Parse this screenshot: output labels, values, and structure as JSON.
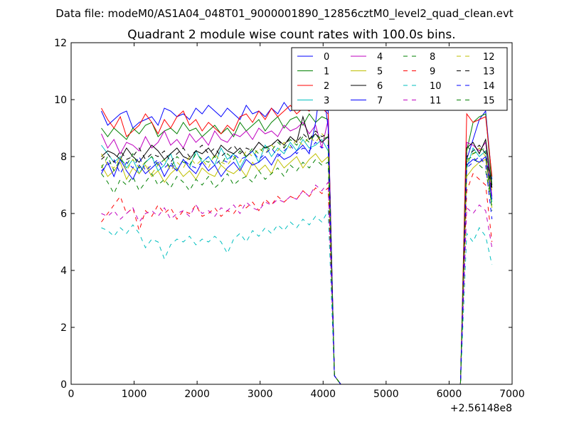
{
  "figure": {
    "suptitle": "Data file: modeM0/AS1A04_048T01_9000001890_12856cztM0_level2_quad_clean.evt"
  },
  "chart_data": {
    "type": "line",
    "title": "Quadrant 2 module wise count rates with 100.0s bins.",
    "xlabel": "",
    "ylabel": "",
    "xlim": [
      0,
      7000
    ],
    "ylim": [
      0,
      12
    ],
    "x_ticks": [
      0,
      1000,
      2000,
      3000,
      4000,
      5000,
      6000,
      7000
    ],
    "y_ticks": [
      0,
      2,
      4,
      6,
      8,
      10,
      12
    ],
    "x_offset_text": "+2.56148e8",
    "grid": false,
    "legend_position": "top-right",
    "legend_columns": 4,
    "x_segments": {
      "segment1": [
        480,
        580,
        680,
        780,
        880,
        980,
        1080,
        1180,
        1280,
        1380,
        1480,
        1580,
        1680,
        1780,
        1880,
        1980,
        2080,
        2180,
        2280,
        2380,
        2480,
        2580,
        2680,
        2780,
        2880,
        2980,
        3080,
        3180,
        3280,
        3380,
        3480,
        3580,
        3680,
        3780,
        3880,
        3980,
        4080,
        4180,
        4280
      ],
      "gap_end": 6180,
      "segment2": [
        6180,
        6280,
        6380,
        6480,
        6580,
        6680
      ]
    },
    "series": [
      {
        "name": "0",
        "color": "#0000ff",
        "dash": "solid",
        "values1": [
          9.6,
          9.1,
          9.3,
          9.5,
          9.6,
          9.0,
          9.2,
          9.3,
          9.4,
          9.1,
          9.7,
          9.6,
          9.4,
          9.5,
          9.3,
          9.7,
          9.5,
          9.8,
          9.6,
          9.4,
          9.7,
          9.5,
          9.3,
          9.8,
          9.5,
          9.6,
          9.4,
          9.7,
          9.5,
          9.9,
          9.6,
          9.7,
          9.8,
          9.6,
          9.9,
          9.7,
          9.6,
          0.3,
          0
        ],
        "values2": [
          0,
          7.9,
          8.6,
          9.3,
          9.6,
          7.2
        ]
      },
      {
        "name": "1",
        "color": "#008000",
        "dash": "solid",
        "values1": [
          9.0,
          8.7,
          9.0,
          8.8,
          8.6,
          9.0,
          8.8,
          9.1,
          9.2,
          8.7,
          8.9,
          9.0,
          8.8,
          9.2,
          8.9,
          9.0,
          8.7,
          8.9,
          9.1,
          8.8,
          9.0,
          8.7,
          9.2,
          8.9,
          9.1,
          9.3,
          8.9,
          9.2,
          9.4,
          9.0,
          9.3,
          9.4,
          9.1,
          9.5,
          9.2,
          9.4,
          9.3,
          0.3,
          0
        ],
        "values2": [
          0,
          8.2,
          9.2,
          9.4,
          9.5,
          7.0
        ]
      },
      {
        "name": "2",
        "color": "#ff0000",
        "dash": "solid",
        "values1": [
          9.7,
          9.3,
          9.0,
          9.4,
          8.7,
          8.9,
          9.1,
          9.5,
          9.2,
          8.8,
          9.3,
          9.0,
          9.4,
          9.6,
          9.1,
          9.3,
          8.9,
          9.2,
          9.0,
          8.8,
          9.1,
          8.9,
          9.4,
          9.5,
          9.2,
          9.6,
          9.3,
          9.7,
          9.4,
          9.6,
          9.8,
          9.5,
          9.7,
          9.6,
          9.8,
          9.7,
          9.5,
          0.3,
          0
        ],
        "values2": [
          0,
          9.5,
          9.2,
          9.3,
          9.4,
          7.3
        ]
      },
      {
        "name": "3",
        "color": "#00bfbf",
        "dash": "solid",
        "values1": [
          8.4,
          8.1,
          7.8,
          8.0,
          7.6,
          7.9,
          7.4,
          7.8,
          8.0,
          7.5,
          7.7,
          8.1,
          7.5,
          7.9,
          7.6,
          8.2,
          7.8,
          8.0,
          7.7,
          8.3,
          7.9,
          8.1,
          7.6,
          8.0,
          8.2,
          7.8,
          8.4,
          8.0,
          8.3,
          8.1,
          8.5,
          8.2,
          8.6,
          8.3,
          8.4,
          8.6,
          8.2,
          0.3,
          0
        ],
        "values2": [
          0,
          7.6,
          8.3,
          8.0,
          8.2,
          6.4
        ]
      },
      {
        "name": "4",
        "color": "#bf00bf",
        "dash": "solid",
        "values1": [
          8.8,
          8.3,
          8.6,
          8.1,
          8.5,
          8.4,
          8.2,
          8.7,
          8.3,
          8.5,
          8.9,
          8.4,
          8.6,
          8.3,
          8.8,
          8.5,
          8.7,
          8.4,
          8.9,
          8.6,
          8.5,
          8.8,
          8.7,
          8.9,
          8.6,
          9.0,
          8.8,
          8.9,
          8.7,
          9.1,
          8.9,
          9.0,
          9.2,
          8.8,
          9.1,
          8.3,
          9.3,
          0.3,
          0
        ],
        "values2": [
          0,
          8.5,
          8.4,
          8.2,
          8.5,
          6.6
        ]
      },
      {
        "name": "5",
        "color": "#bfbf00",
        "dash": "solid",
        "values1": [
          7.7,
          7.3,
          7.5,
          7.8,
          7.2,
          7.6,
          7.4,
          7.7,
          7.3,
          7.5,
          7.1,
          7.4,
          7.6,
          7.3,
          7.5,
          7.2,
          7.6,
          7.4,
          7.3,
          7.7,
          7.5,
          7.4,
          7.6,
          7.3,
          7.8,
          7.5,
          7.7,
          7.4,
          7.9,
          7.6,
          7.8,
          8.0,
          7.6,
          7.9,
          8.1,
          7.8,
          8.0,
          0.3,
          0
        ],
        "values2": [
          0,
          7.3,
          7.6,
          7.8,
          7.9,
          6.2
        ]
      },
      {
        "name": "6",
        "color": "#000000",
        "dash": "solid",
        "values1": [
          8.0,
          8.2,
          8.1,
          7.9,
          8.3,
          8.0,
          7.8,
          8.1,
          8.4,
          8.2,
          7.9,
          8.1,
          8.3,
          8.0,
          7.9,
          8.2,
          8.1,
          8.3,
          8.0,
          8.4,
          8.2,
          8.1,
          8.3,
          8.0,
          8.2,
          8.5,
          8.3,
          8.4,
          8.6,
          8.4,
          8.7,
          8.5,
          9.4,
          8.6,
          8.8,
          8.5,
          8.7,
          0.3,
          0
        ],
        "values2": [
          0,
          8.3,
          8.5,
          8.1,
          8.6,
          6.9
        ]
      },
      {
        "name": "7",
        "color": "#0000ff",
        "dash": "solid",
        "values1": [
          7.4,
          7.8,
          7.3,
          7.9,
          7.5,
          7.2,
          7.7,
          7.4,
          7.6,
          7.8,
          7.3,
          7.7,
          7.5,
          7.9,
          7.6,
          7.4,
          7.8,
          7.5,
          7.7,
          7.3,
          7.6,
          7.8,
          7.5,
          7.9,
          7.7,
          7.8,
          8.0,
          7.7,
          8.1,
          7.9,
          8.0,
          8.2,
          8.4,
          8.1,
          9.2,
          10.8,
          9.0,
          0.3,
          0
        ],
        "values2": [
          0,
          7.7,
          7.9,
          7.8,
          8.0,
          6.5
        ]
      },
      {
        "name": "8",
        "color": "#008000",
        "dash": "dashed",
        "values1": [
          7.4,
          7.1,
          6.7,
          7.2,
          7.0,
          7.3,
          6.8,
          7.1,
          7.4,
          7.0,
          7.2,
          6.9,
          7.3,
          7.1,
          6.8,
          7.2,
          7.0,
          7.3,
          6.9,
          7.1,
          7.4,
          7.0,
          7.2,
          7.3,
          7.1,
          7.5,
          7.2,
          7.4,
          7.6,
          7.3,
          7.7,
          7.5,
          7.8,
          7.6,
          7.9,
          7.7,
          7.8,
          0.3,
          0
        ],
        "values2": [
          0,
          7.9,
          8.0,
          7.7,
          7.5,
          6.3
        ]
      },
      {
        "name": "9",
        "color": "#ff0000",
        "dash": "dashed",
        "values1": [
          5.7,
          6.0,
          6.3,
          6.6,
          6.0,
          6.2,
          5.4,
          6.1,
          5.9,
          6.3,
          6.0,
          6.2,
          5.8,
          6.1,
          6.0,
          6.3,
          5.9,
          6.0,
          6.2,
          5.9,
          6.1,
          6.0,
          6.3,
          6.2,
          6.4,
          6.1,
          6.5,
          6.3,
          6.6,
          6.4,
          6.6,
          6.5,
          6.8,
          6.6,
          6.9,
          6.7,
          6.9,
          0.3,
          0
        ],
        "values2": [
          0,
          6.8,
          7.4,
          7.2,
          7.0,
          5.0
        ]
      },
      {
        "name": "10",
        "color": "#00bfbf",
        "dash": "dashed",
        "values1": [
          5.5,
          5.4,
          5.2,
          5.5,
          5.3,
          5.6,
          5.3,
          4.8,
          5.1,
          5.0,
          4.4,
          4.9,
          5.1,
          5.0,
          5.2,
          4.9,
          5.1,
          5.0,
          5.2,
          5.0,
          4.6,
          5.1,
          5.3,
          5.0,
          5.4,
          5.2,
          5.5,
          5.3,
          5.6,
          5.4,
          5.7,
          5.5,
          5.8,
          5.6,
          5.9,
          5.7,
          6.1,
          0.3,
          0
        ],
        "values2": [
          0,
          5.3,
          5.0,
          5.5,
          5.2,
          4.2
        ]
      },
      {
        "name": "11",
        "color": "#bf00bf",
        "dash": "dashed",
        "values1": [
          6.0,
          5.9,
          6.1,
          5.8,
          6.0,
          6.2,
          5.7,
          6.0,
          6.1,
          5.9,
          6.2,
          5.8,
          6.0,
          6.1,
          5.9,
          6.3,
          6.0,
          6.1,
          5.9,
          6.2,
          6.1,
          6.3,
          6.0,
          6.4,
          6.2,
          6.1,
          6.4,
          6.3,
          6.5,
          6.4,
          6.6,
          6.5,
          6.8,
          6.6,
          7.0,
          6.8,
          7.1,
          0.3,
          0
        ],
        "values2": [
          0,
          6.2,
          6.0,
          6.3,
          6.1,
          4.8
        ]
      },
      {
        "name": "12",
        "color": "#bfbf00",
        "dash": "dashed",
        "values1": [
          8.1,
          7.7,
          7.6,
          8.0,
          7.5,
          7.9,
          7.6,
          7.8,
          7.4,
          7.7,
          7.9,
          7.5,
          7.8,
          7.6,
          8.0,
          7.7,
          7.9,
          7.6,
          8.1,
          7.8,
          7.7,
          8.0,
          7.8,
          8.2,
          8.0,
          8.3,
          8.1,
          8.4,
          8.2,
          8.5,
          8.3,
          8.6,
          8.4,
          8.7,
          8.5,
          8.8,
          8.6,
          0.3,
          0
        ],
        "values2": [
          0,
          7.8,
          8.1,
          8.3,
          8.0,
          6.8
        ]
      },
      {
        "name": "13",
        "color": "#000000",
        "dash": "dashed",
        "values1": [
          7.9,
          8.1,
          7.8,
          8.2,
          7.9,
          8.0,
          8.3,
          7.9,
          8.1,
          8.0,
          8.2,
          7.8,
          8.1,
          8.3,
          8.0,
          8.2,
          8.4,
          8.1,
          8.3,
          8.0,
          8.2,
          8.4,
          8.1,
          8.3,
          8.2,
          8.5,
          8.3,
          8.4,
          8.6,
          8.3,
          8.7,
          8.5,
          8.8,
          8.6,
          8.9,
          8.7,
          8.8,
          0.3,
          0
        ],
        "values2": [
          0,
          8.0,
          8.2,
          8.4,
          8.1,
          6.8
        ]
      },
      {
        "name": "14",
        "color": "#0000ff",
        "dash": "dashed",
        "values1": [
          7.5,
          7.7,
          7.9,
          7.4,
          7.8,
          7.6,
          8.0,
          7.5,
          7.7,
          7.9,
          7.6,
          7.8,
          7.5,
          7.9,
          7.7,
          7.6,
          7.8,
          8.0,
          7.7,
          7.9,
          7.8,
          8.1,
          7.9,
          8.0,
          8.2,
          7.9,
          8.1,
          8.3,
          8.0,
          8.2,
          8.4,
          8.1,
          8.3,
          8.2,
          8.5,
          8.3,
          8.4,
          0.3,
          0
        ],
        "values2": [
          0,
          7.6,
          7.8,
          8.0,
          7.7,
          5.8
        ]
      },
      {
        "name": "15",
        "color": "#008000",
        "dash": "dashed",
        "values1": [
          7.6,
          8.0,
          7.5,
          7.9,
          7.7,
          8.1,
          7.6,
          7.8,
          8.0,
          7.7,
          7.9,
          7.6,
          8.0,
          7.8,
          7.7,
          8.1,
          7.9,
          7.8,
          8.0,
          7.7,
          8.1,
          7.9,
          8.2,
          8.0,
          8.3,
          8.1,
          8.4,
          8.2,
          8.5,
          8.3,
          8.6,
          8.4,
          8.7,
          8.5,
          8.8,
          8.6,
          8.7,
          0.3,
          0
        ],
        "values2": [
          0,
          8.4,
          8.1,
          8.2,
          8.3,
          6.1
        ]
      }
    ]
  }
}
